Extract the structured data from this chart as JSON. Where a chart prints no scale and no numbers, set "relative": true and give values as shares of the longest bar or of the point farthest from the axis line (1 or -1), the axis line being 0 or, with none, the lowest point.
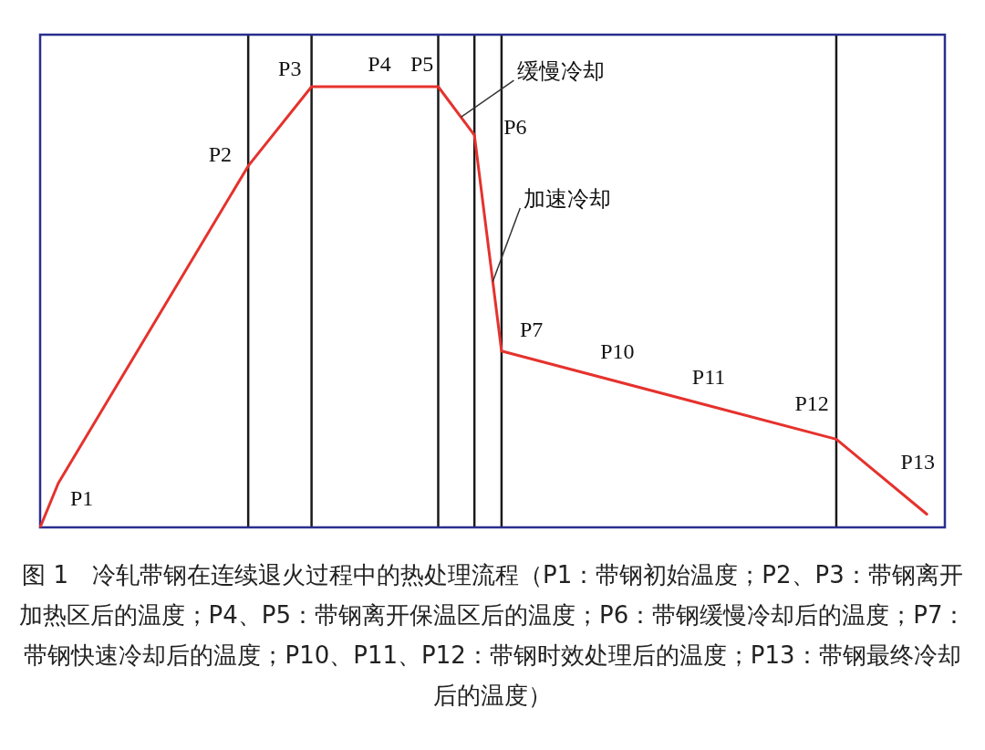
{
  "chart_data": {
    "type": "line",
    "relative": true,
    "legend": false,
    "grid": "x",
    "marker": "none",
    "line_style": "solid",
    "categories": [
      null,
      null,
      null,
      null,
      null,
      null,
      null,
      null,
      null,
      null,
      null,
      null,
      null,
      null,
      null,
      null,
      null,
      null,
      null,
      null,
      null,
      null,
      null,
      null,
      null,
      null,
      null,
      null,
      null,
      null,
      null,
      null,
      null,
      null,
      null,
      null,
      null,
      null,
      null,
      null,
      null,
      null,
      null,
      null,
      null,
      null,
      null,
      null,
      null,
      null,
      null,
      null,
      null,
      null,
      null,
      null,
      null,
      null,
      null,
      null,
      null,
      null,
      null,
      null,
      null,
      null,
      null,
      null,
      null,
      null,
      null,
      null,
      null,
      null,
      null,
      null,
      null,
      null,
      null,
      null,
      null,
      null,
      null,
      null,
      null,
      null,
      null,
      null,
      null,
      null,
      null,
      null,
      null,
      null,
      null,
      null,
      null,
      null,
      null,
      null,
      null
    ],
    "series": [
      {
        "color": "#e5322d",
        "values": [
          0,
          null,
          0.1,
          null,
          null,
          null,
          null,
          null,
          null,
          null,
          null,
          null,
          null,
          null,
          null,
          null,
          null,
          null,
          null,
          null,
          null,
          null,
          null,
          0.82,
          null,
          null,
          null,
          null,
          null,
          null,
          1,
          null,
          null,
          null,
          null,
          null,
          null,
          null,
          null,
          null,
          null,
          null,
          null,
          null,
          1,
          null,
          null,
          null,
          0.89,
          null,
          null,
          0.4,
          null,
          null,
          null,
          null,
          null,
          null,
          null,
          null,
          null,
          null,
          null,
          null,
          null,
          null,
          null,
          null,
          null,
          null,
          null,
          null,
          null,
          null,
          null,
          null,
          null,
          null,
          null,
          null,
          null,
          null,
          null,
          null,
          null,
          null,
          null,
          null,
          0.2,
          null,
          null,
          null,
          null,
          null,
          null,
          null,
          null,
          null,
          0.03,
          null,
          null
        ]
      }
    ],
    "annotations": [
      "P1",
      "P2",
      "P3",
      "P4",
      "P5",
      "P6",
      "P7",
      "P10",
      "P11",
      "P12",
      "P13",
      "缓慢冷却",
      "加速冷却",
      "图 1　冷轧带钢在连续退火过程中的热处理流程（P1：带钢初始温度；P2、P3：带钢离开加热区后的温度；P4、P5：带钢离开保温区后的温度；P6：带钢缓慢冷却后的温度；P7：带钢快速冷却后的温度；P10、P11、P12：带钢时效处理后的温度；P13：带钢最终冷却后的温度）"
    ]
  }
}
